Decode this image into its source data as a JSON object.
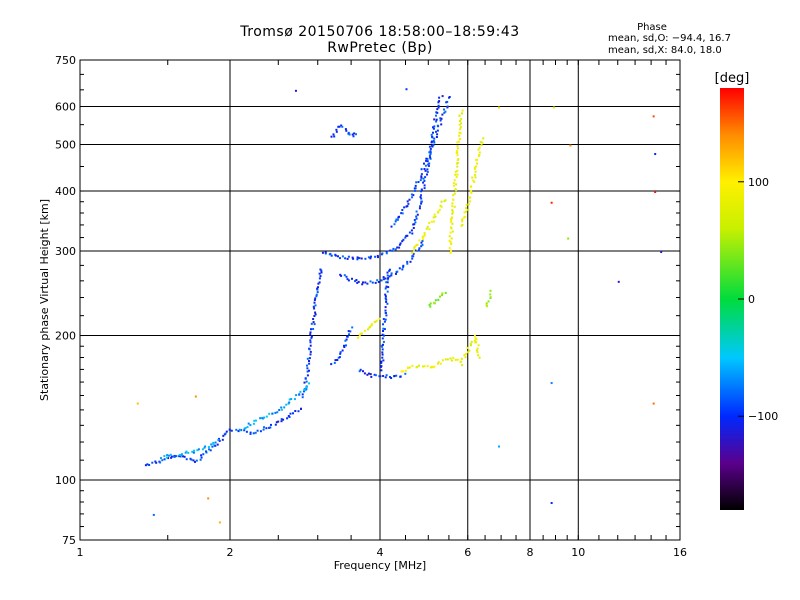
{
  "chart_data": {
    "type": "scatter",
    "title": "Tromsø 20150706 18:58:00–18:59:43",
    "subtitle": "RwPretec (Bp)",
    "xlabel": "Frequency [MHz]",
    "ylabel": "Stationary phase Virtual Height [km]",
    "xscale": "log",
    "yscale": "log",
    "xlim": [
      1,
      16
    ],
    "ylim": [
      75,
      750
    ],
    "xticks": [
      1,
      2,
      4,
      6,
      8,
      10,
      16
    ],
    "xtick_labels": [
      "1",
      "2",
      "4",
      "6",
      "8",
      "10",
      "16"
    ],
    "xgrid": [
      2,
      4,
      6,
      8,
      10
    ],
    "yticks": [
      75,
      100,
      200,
      300,
      400,
      500,
      600,
      750
    ],
    "ytick_labels": [
      "75",
      "100",
      "200",
      "300",
      "400",
      "500",
      "600",
      "750"
    ],
    "ygrid": [
      100,
      200,
      300,
      400,
      500,
      600
    ],
    "grid": true,
    "stats": {
      "heading": "Phase",
      "o_line": "mean, sd,O: −94.4, 16.7",
      "x_line": "mean, sd,X:  84.0, 18.0"
    },
    "colorbar": {
      "label": "[deg]",
      "range": [
        -180,
        180
      ],
      "ticks": [
        -100,
        0,
        100
      ],
      "tick_labels": [
        "−100",
        "0",
        "100"
      ],
      "colormap": "rainbow: black–purple–blue–cyan–green–yellow–orange–red"
    },
    "series": [
      {
        "phase": -95,
        "segments": [
          {
            "f": [
              1.35,
              1.45,
              1.55,
              1.7,
              1.85,
              2.0,
              2.2,
              2.4,
              2.6,
              2.8
            ],
            "h": [
              108,
              110,
              113,
              110,
              118,
              128,
              126,
              130,
              136,
              142
            ]
          },
          {
            "f": [
              2.8,
              2.85,
              2.9,
              2.95,
              3.0,
              3.05
            ],
            "h": [
              150,
              170,
              200,
              230,
              260,
              280
            ]
          },
          {
            "f": [
              3.05,
              3.2,
              3.4,
              3.6,
              3.8,
              4.0,
              4.2,
              4.4,
              4.6,
              4.8,
              5.0
            ],
            "h": [
              300,
              296,
              292,
              290,
              292,
              296,
              302,
              312,
              330,
              380,
              470
            ]
          },
          {
            "f": [
              5.0,
              5.1,
              5.2,
              5.3
            ],
            "h": [
              470,
              540,
              600,
              640
            ]
          },
          {
            "f": [
              4.2,
              4.4,
              4.6,
              4.8,
              5.0,
              5.2,
              5.4,
              5.5
            ],
            "h": [
              340,
              360,
              390,
              430,
              480,
              540,
              600,
              640
            ]
          },
          {
            "f": [
              3.3,
              3.5,
              3.7,
              4.0,
              4.3,
              4.6,
              4.9
            ],
            "h": [
              270,
              262,
              258,
              262,
              272,
              290,
              320
            ]
          },
          {
            "f": [
              3.2,
              3.3,
              3.4,
              3.5,
              3.6
            ],
            "h": [
              520,
              550,
              540,
              520,
              535
            ]
          },
          {
            "f": [
              3.6,
              3.8,
              4.0,
              4.2,
              4.4,
              4.5
            ],
            "h": [
              170,
              166,
              165,
              165,
              166,
              168
            ]
          },
          {
            "f": [
              3.2,
              3.3,
              3.4,
              3.5
            ],
            "h": [
              175,
              180,
              195,
              210
            ]
          },
          {
            "f": [
              4.0,
              4.05,
              4.1,
              4.15
            ],
            "h": [
              170,
              200,
              240,
              280
            ]
          }
        ]
      },
      {
        "phase": -60,
        "segments": [
          {
            "f": [
              2.1,
              2.3,
              2.5,
              2.7,
              2.9
            ],
            "h": [
              128,
              135,
              140,
              150,
              160
            ]
          },
          {
            "f": [
              1.45,
              1.6,
              1.75,
              1.9
            ],
            "h": [
              112,
              114,
              116,
              122
            ]
          }
        ]
      },
      {
        "phase": 85,
        "segments": [
          {
            "f": [
              4.4,
              4.6,
              4.8,
              5.0,
              5.2,
              5.4,
              5.6,
              5.8
            ],
            "h": [
              170,
              172,
              174,
              172,
              175,
              178,
              180,
              176
            ]
          },
          {
            "f": [
              5.5,
              5.6,
              5.7,
              5.8
            ],
            "h": [
              300,
              380,
              480,
              600
            ]
          },
          {
            "f": [
              4.6,
              4.8,
              5.0,
              5.2,
              5.4
            ],
            "h": [
              300,
              315,
              340,
              365,
              390
            ]
          },
          {
            "f": [
              5.8,
              6.0,
              6.2,
              6.4
            ],
            "h": [
              340,
              380,
              450,
              520
            ]
          },
          {
            "f": [
              3.6,
              3.8,
              4.0
            ],
            "h": [
              200,
              210,
              220
            ]
          },
          {
            "f": [
              5.8,
              6.0,
              6.2,
              6.3
            ],
            "h": [
              175,
              190,
              200,
              180
            ]
          }
        ]
      },
      {
        "phase": 40,
        "segments": [
          {
            "f": [
              5.0,
              5.2,
              5.4
            ],
            "h": [
              230,
              240,
              250
            ]
          },
          {
            "f": [
              6.5,
              6.6,
              6.7
            ],
            "h": [
              230,
              240,
              250
            ]
          }
        ]
      }
    ],
    "isolated_points": [
      {
        "f": 1.3,
        "h": 145,
        "phase": 120
      },
      {
        "f": 1.7,
        "h": 150,
        "phase": 140
      },
      {
        "f": 1.9,
        "h": 82,
        "phase": 125
      },
      {
        "f": 1.8,
        "h": 92,
        "phase": 140
      },
      {
        "f": 1.4,
        "h": 85,
        "phase": -80
      },
      {
        "f": 2.7,
        "h": 650,
        "phase": -120
      },
      {
        "f": 4.5,
        "h": 655,
        "phase": -95
      },
      {
        "f": 6.9,
        "h": 118,
        "phase": -60
      },
      {
        "f": 6.9,
        "h": 600,
        "phase": 110
      },
      {
        "f": 8.8,
        "h": 90,
        "phase": -100
      },
      {
        "f": 8.8,
        "h": 380,
        "phase": 170
      },
      {
        "f": 8.8,
        "h": 160,
        "phase": -70
      },
      {
        "f": 8.9,
        "h": 600,
        "phase": 80
      },
      {
        "f": 9.5,
        "h": 320,
        "phase": 40
      },
      {
        "f": 9.6,
        "h": 500,
        "phase": 140
      },
      {
        "f": 12.0,
        "h": 260,
        "phase": -110
      },
      {
        "f": 14.1,
        "h": 145,
        "phase": 150
      },
      {
        "f": 14.1,
        "h": 575,
        "phase": 160
      },
      {
        "f": 14.2,
        "h": 400,
        "phase": 175
      },
      {
        "f": 14.2,
        "h": 480,
        "phase": -100
      },
      {
        "f": 14.6,
        "h": 300,
        "phase": -110
      }
    ]
  }
}
